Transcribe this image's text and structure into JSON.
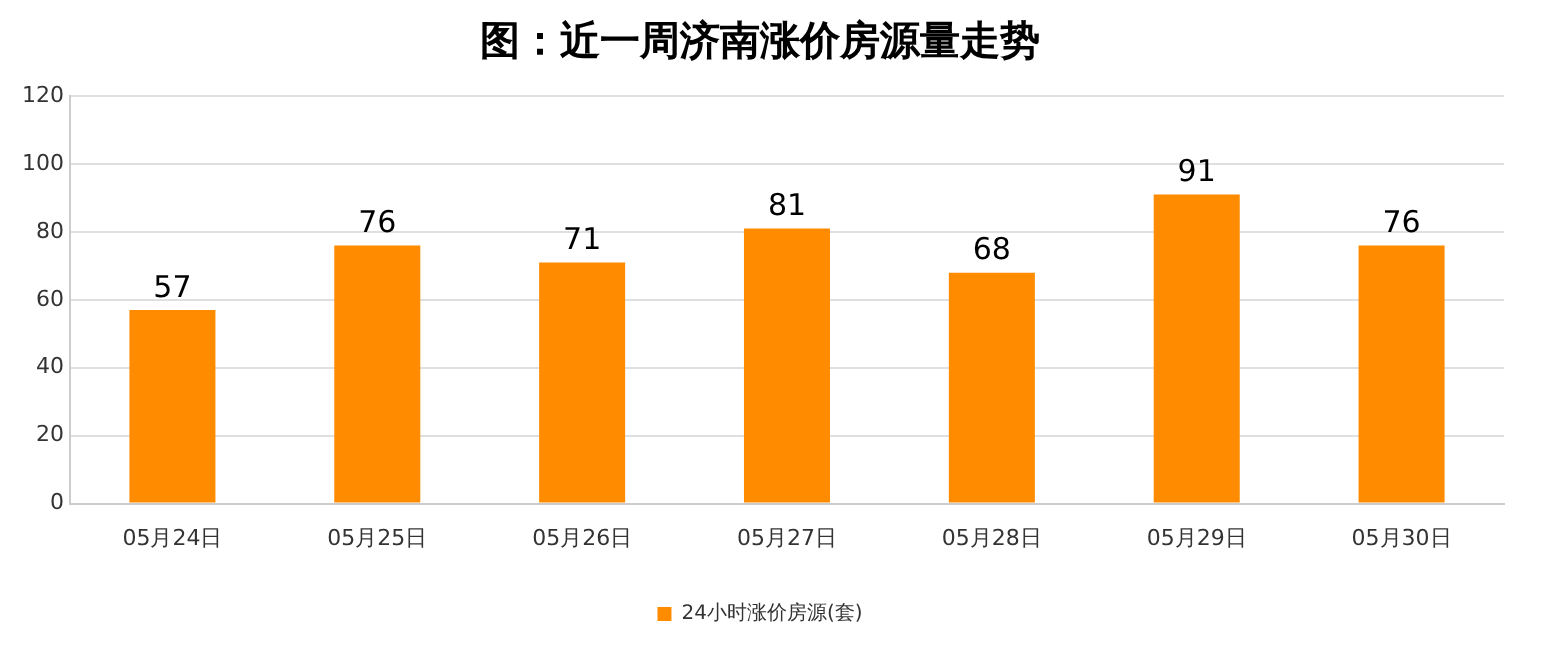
{
  "chart_data": {
    "type": "bar",
    "title": "图：近一周济南涨价房源量走势",
    "categories": [
      "05月24日",
      "05月25日",
      "05月26日",
      "05月27日",
      "05月28日",
      "05月29日",
      "05月30日"
    ],
    "series": [
      {
        "name": "24小时涨价房源(套)",
        "color": "#ff8c00",
        "values": [
          57,
          76,
          71,
          81,
          68,
          91,
          76
        ]
      }
    ],
    "ylim": [
      0,
      120
    ],
    "yticks": [
      0,
      20,
      40,
      60,
      80,
      100,
      120
    ],
    "grid": "y",
    "legend": "bottom",
    "data_labels": true
  }
}
